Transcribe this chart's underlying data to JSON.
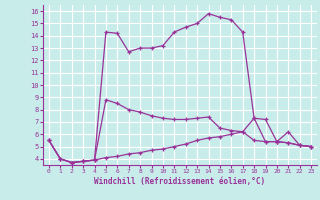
{
  "xlabel": "Windchill (Refroidissement éolien,°C)",
  "background_color": "#c8ecea",
  "grid_color": "#ffffff",
  "line_color": "#993399",
  "x_ticks": [
    0,
    1,
    2,
    3,
    4,
    5,
    6,
    7,
    8,
    9,
    10,
    11,
    12,
    13,
    14,
    15,
    16,
    17,
    18,
    19,
    20,
    21,
    22,
    23
  ],
  "y_ticks": [
    4,
    5,
    6,
    7,
    8,
    9,
    10,
    11,
    12,
    13,
    14,
    15,
    16
  ],
  "ylim": [
    3.5,
    16.5
  ],
  "xlim": [
    -0.5,
    23.5
  ],
  "line1_x": [
    0,
    1,
    2,
    3,
    4,
    5,
    6,
    7,
    8,
    9,
    10,
    11,
    12,
    13,
    14,
    15,
    16,
    17,
    18,
    19,
    20,
    21,
    22,
    23
  ],
  "line1_y": [
    5.5,
    4.0,
    3.7,
    3.8,
    3.9,
    14.3,
    14.2,
    12.7,
    13.0,
    13.0,
    13.2,
    14.3,
    14.7,
    15.0,
    15.8,
    15.5,
    15.3,
    14.3,
    7.3,
    7.2,
    5.4,
    6.2,
    5.1,
    5.0
  ],
  "line2_x": [
    0,
    1,
    2,
    3,
    4,
    5,
    6,
    7,
    8,
    9,
    10,
    11,
    12,
    13,
    14,
    15,
    16,
    17,
    18,
    19,
    20,
    21,
    22,
    23
  ],
  "line2_y": [
    5.5,
    4.0,
    3.7,
    3.8,
    3.9,
    8.8,
    8.5,
    8.0,
    7.8,
    7.5,
    7.3,
    7.2,
    7.2,
    7.3,
    7.4,
    6.5,
    6.3,
    6.2,
    7.3,
    5.4,
    5.4,
    5.3,
    5.1,
    5.0
  ],
  "line3_x": [
    0,
    1,
    2,
    3,
    4,
    5,
    6,
    7,
    8,
    9,
    10,
    11,
    12,
    13,
    14,
    15,
    16,
    17,
    18,
    19,
    20,
    21,
    22,
    23
  ],
  "line3_y": [
    5.5,
    4.0,
    3.7,
    3.8,
    3.9,
    4.1,
    4.2,
    4.4,
    4.5,
    4.7,
    4.8,
    5.0,
    5.2,
    5.5,
    5.7,
    5.8,
    6.0,
    6.2,
    5.5,
    5.4,
    5.4,
    5.3,
    5.1,
    5.0
  ]
}
